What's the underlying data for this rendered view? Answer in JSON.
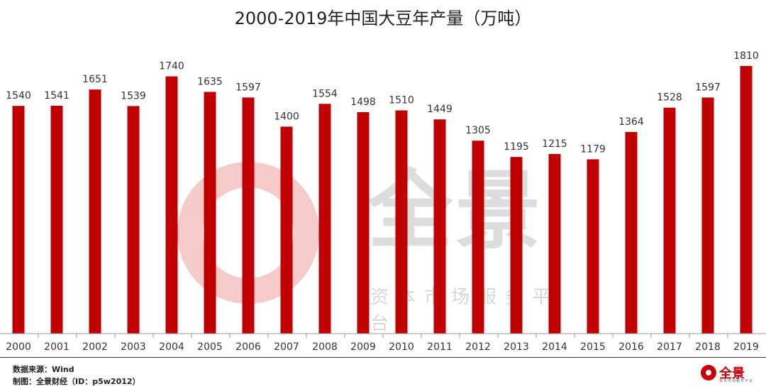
{
  "title": "2000-2019年中国大豆年产量（万吨）",
  "footer": {
    "source": "数据来源：Wind",
    "maker": "制图：全景财经（ID：p5w2012）"
  },
  "logo": {
    "name": "全景",
    "sub": "资本市场服务平台"
  },
  "watermark": {
    "name": "全景",
    "sub": "资本市场服务平台"
  },
  "colors": {
    "bar": "#c00000",
    "accent": "#c8000a"
  },
  "chart_data": {
    "type": "bar",
    "title": "2000-2019年中国大豆年产量（万吨）",
    "xlabel": "",
    "ylabel": "",
    "unit": "万吨",
    "categories": [
      "2000",
      "2001",
      "2002",
      "2003",
      "2004",
      "2005",
      "2006",
      "2007",
      "2008",
      "2009",
      "2010",
      "2011",
      "2012",
      "2013",
      "2014",
      "2015",
      "2016",
      "2017",
      "2018",
      "2019"
    ],
    "values": [
      1540,
      1541,
      1651,
      1539,
      1740,
      1635,
      1597,
      1400,
      1554,
      1498,
      1510,
      1449,
      1305,
      1195,
      1215,
      1179,
      1364,
      1528,
      1597,
      1810
    ],
    "data_labels": true,
    "ylim": [
      0,
      1810
    ],
    "grid": false,
    "legend": "none"
  }
}
